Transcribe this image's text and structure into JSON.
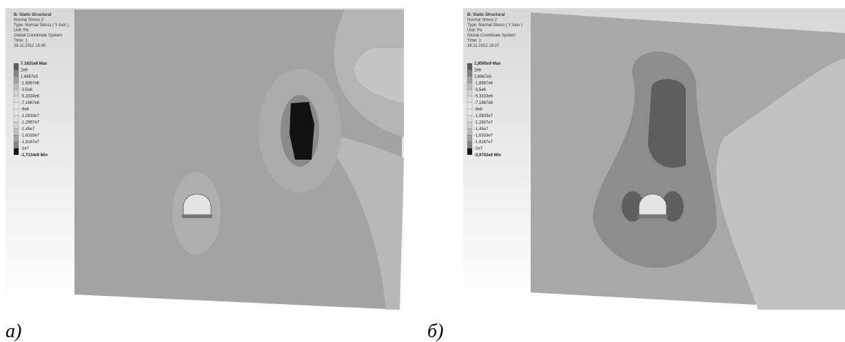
{
  "panels": [
    {
      "label": "а)",
      "header": [
        "B: Static Structural",
        "Normal Stress 2",
        "Type: Normal Stress ( Y Axis )",
        "Unit: Pa",
        "Global Coordinate System",
        "Time: 1",
        "26.11.2012 15:45"
      ],
      "legend": [
        "7.1831e8 Max",
        "2e6",
        "1,6667e5",
        "-1,6667e6",
        "-3,5e6",
        "-5,3333e6",
        "-7,1667e6",
        "-9e6",
        "-1,0833e7",
        "-1,2667e7",
        "-1,45e7",
        "-1,6333e7",
        "-1,8167e7",
        "-2e7",
        "-1,7134e9 Min"
      ]
    },
    {
      "label": "б)",
      "header": [
        "B: Static Structural",
        "Normal Stress 2",
        "Type: Normal Stress ( Y Axis )",
        "Unit: Pa",
        "Global Coordinate System",
        "Time: 1",
        "26.11.2012 16:27"
      ],
      "legend": [
        "1,9595e9 Max",
        "2e6",
        "1,6667e5",
        "-1,6667e6",
        "-3,5e6",
        "-5,3333e6",
        "-7,1667e6",
        "-9e6",
        "-1,0833e7",
        "-1,2667e7",
        "-1,45e7",
        "-1,6333e7",
        "-1,8167e7",
        "-2e7",
        "-2,9702e9 Min"
      ]
    }
  ]
}
